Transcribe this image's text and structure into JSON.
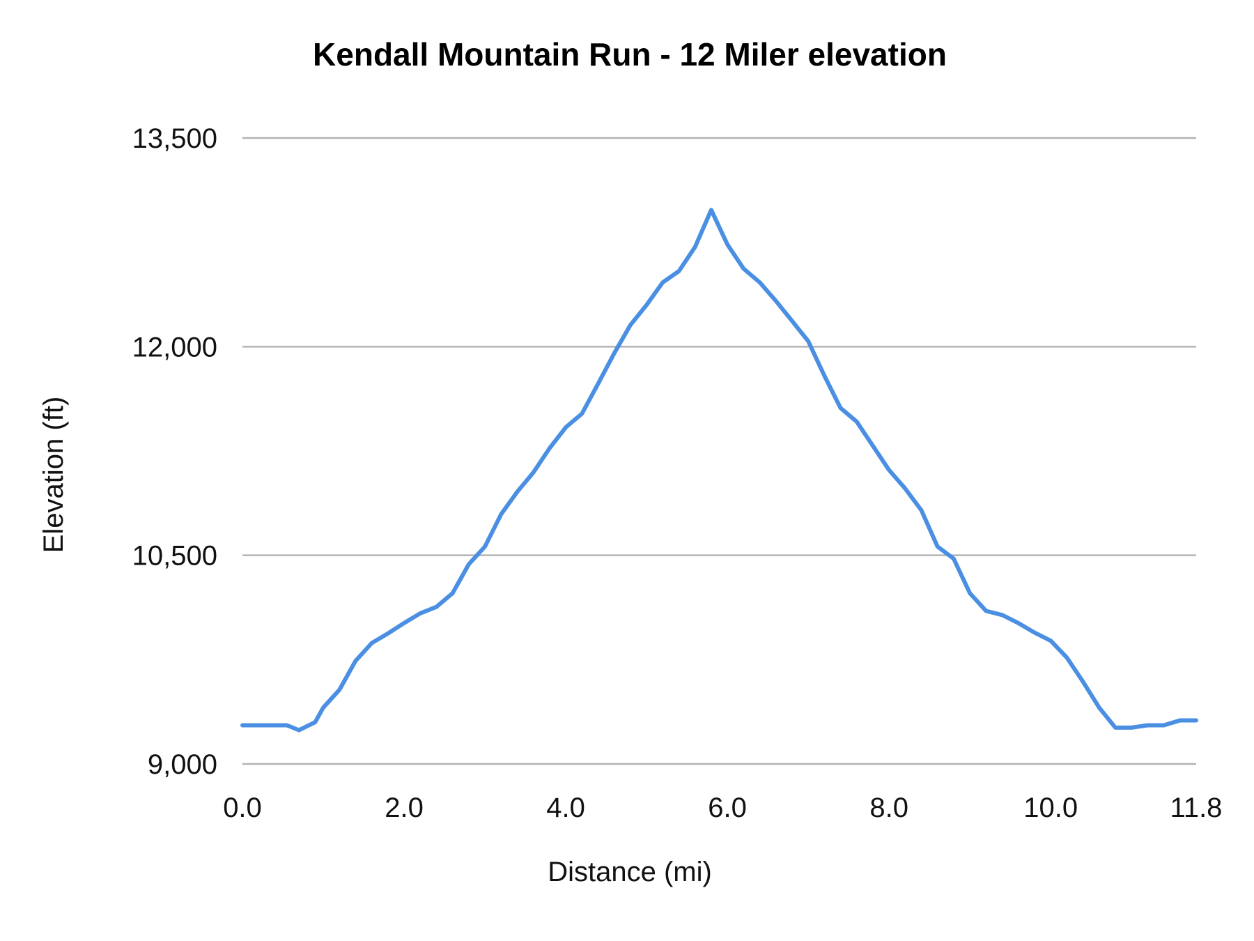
{
  "chart_data": {
    "type": "line",
    "title": "Kendall Mountain Run - 12 Miler elevation",
    "xlabel": "Distance (mi)",
    "ylabel": "Elevation (ft)",
    "xlim": [
      0,
      11.8
    ],
    "ylim": [
      9000,
      13500
    ],
    "x_ticks": [
      "0.0",
      "2.0",
      "4.0",
      "6.0",
      "8.0",
      "10.0",
      "11.8"
    ],
    "x_tick_values": [
      0,
      2,
      4,
      6,
      8,
      10,
      11.8
    ],
    "y_ticks": [
      "9,000",
      "10,500",
      "12,000",
      "13,500"
    ],
    "y_tick_values": [
      9000,
      10500,
      12000,
      13500
    ],
    "grid": "horizontal",
    "legend": "none",
    "series": [
      {
        "color": "#4a8fe2",
        "x": [
          0.0,
          0.55,
          0.7,
          0.9,
          1.0,
          1.2,
          1.4,
          1.6,
          1.8,
          2.0,
          2.2,
          2.4,
          2.6,
          2.8,
          3.0,
          3.2,
          3.4,
          3.6,
          3.8,
          4.0,
          4.2,
          4.4,
          4.6,
          4.8,
          5.0,
          5.2,
          5.4,
          5.6,
          5.8,
          6.0,
          6.2,
          6.4,
          6.6,
          6.8,
          7.0,
          7.2,
          7.4,
          7.6,
          7.8,
          8.0,
          8.2,
          8.4,
          8.6,
          8.8,
          9.0,
          9.2,
          9.4,
          9.6,
          9.8,
          10.0,
          10.2,
          10.4,
          10.6,
          10.8,
          11.0,
          11.2,
          11.4,
          11.6,
          11.8
        ],
        "y": [
          9278,
          9278,
          9243,
          9300,
          9405,
          9533,
          9741,
          9869,
          9938,
          10013,
          10083,
          10129,
          10227,
          10435,
          10563,
          10795,
          10957,
          11096,
          11270,
          11420,
          11518,
          11733,
          11953,
          12156,
          12300,
          12462,
          12543,
          12717,
          12983,
          12735,
          12561,
          12462,
          12329,
          12185,
          12040,
          11791,
          11559,
          11461,
          11287,
          11113,
          10980,
          10824,
          10563,
          10476,
          10227,
          10100,
          10071,
          10013,
          9944,
          9886,
          9764,
          9591,
          9405,
          9261,
          9261,
          9278,
          9278,
          9313,
          9313
        ]
      }
    ]
  }
}
